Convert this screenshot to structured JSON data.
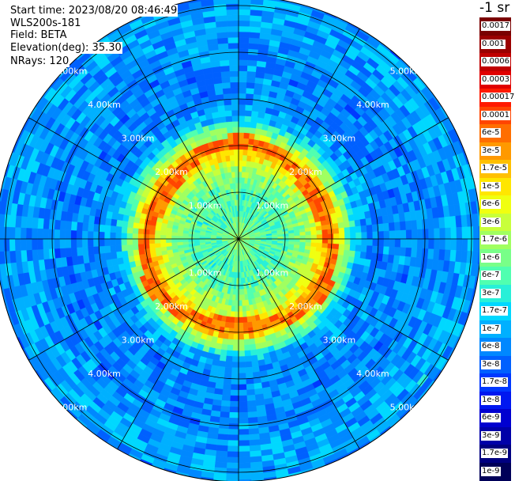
{
  "info": {
    "start_time": "Start time: 2023/08/20 08:46:49",
    "instrument": "WLS200s-181",
    "field": "Field: BETA",
    "elevation": "Elevation(deg): 35.30",
    "nrays": "NRays: 120"
  },
  "colorbar": {
    "unit_label": "-1 sr",
    "labels": [
      "0.0017",
      "0.001",
      "0.0006",
      "0.0003",
      "0.00017",
      "0.0001",
      "6e-5",
      "3e-5",
      "1.7e-5",
      "1e-5",
      "6e-6",
      "3e-6",
      "1.7e-6",
      "1e-6",
      "6e-7",
      "3e-7",
      "1.7e-7",
      "1e-7",
      "6e-8",
      "3e-8",
      "1.7e-8",
      "1e-8",
      "6e-9",
      "3e-9",
      "1.7e-9",
      "1e-9"
    ],
    "colors": [
      "#7a0000",
      "#9a0000",
      "#c00000",
      "#e00000",
      "#ff1a00",
      "#ff4500",
      "#ff6e00",
      "#ff9900",
      "#ffc000",
      "#ffe600",
      "#f0ff10",
      "#c8ff3a",
      "#a0ff60",
      "#78ff88",
      "#50ffb0",
      "#28f0d8",
      "#00d8ff",
      "#00b0ff",
      "#0088ff",
      "#0060ff",
      "#0038ff",
      "#0018f0",
      "#0000d0",
      "#0000a8",
      "#000080",
      "#000058"
    ]
  },
  "chart_data": {
    "type": "heatmap",
    "projection": "polar (PPI)",
    "n_rays": 120,
    "elevation_deg": 35.3,
    "range_rings_km": [
      1,
      2,
      3,
      4,
      5
    ],
    "ring_labels": [
      "1.00km",
      "2.00km",
      "3.00km",
      "4.00km",
      "5.00km"
    ],
    "spokes_deg": [
      0,
      30,
      60,
      90,
      120,
      150
    ],
    "field": "BETA",
    "max_range_km": 5.2,
    "radial_profile": [
      {
        "range_km": 0.0,
        "level": 12
      },
      {
        "range_km": 0.5,
        "level": 14
      },
      {
        "range_km": 1.0,
        "level": 14
      },
      {
        "range_km": 1.5,
        "level": 12
      },
      {
        "range_km": 1.8,
        "level": 9
      },
      {
        "range_km": 2.0,
        "level": 6
      },
      {
        "range_km": 2.2,
        "level": 11
      },
      {
        "range_km": 2.6,
        "level": 17
      },
      {
        "range_km": 3.0,
        "level": 18
      },
      {
        "range_km": 4.0,
        "level": 18
      },
      {
        "range_km": 5.0,
        "level": 17
      },
      {
        "range_km": 5.2,
        "level": 18
      }
    ],
    "colorbar_ticks": [
      "0.0017",
      "0.001",
      "0.0006",
      "0.0003",
      "0.00017",
      "0.0001",
      "6e-5",
      "3e-5",
      "1.7e-5",
      "1e-5",
      "6e-6",
      "3e-6",
      "1.7e-6",
      "1e-6",
      "6e-7",
      "3e-7",
      "1.7e-7",
      "1e-7",
      "6e-8",
      "3e-8",
      "1.7e-8",
      "1e-8",
      "6e-9",
      "3e-9",
      "1.7e-9",
      "1e-9"
    ],
    "unit": "-1 sr"
  }
}
